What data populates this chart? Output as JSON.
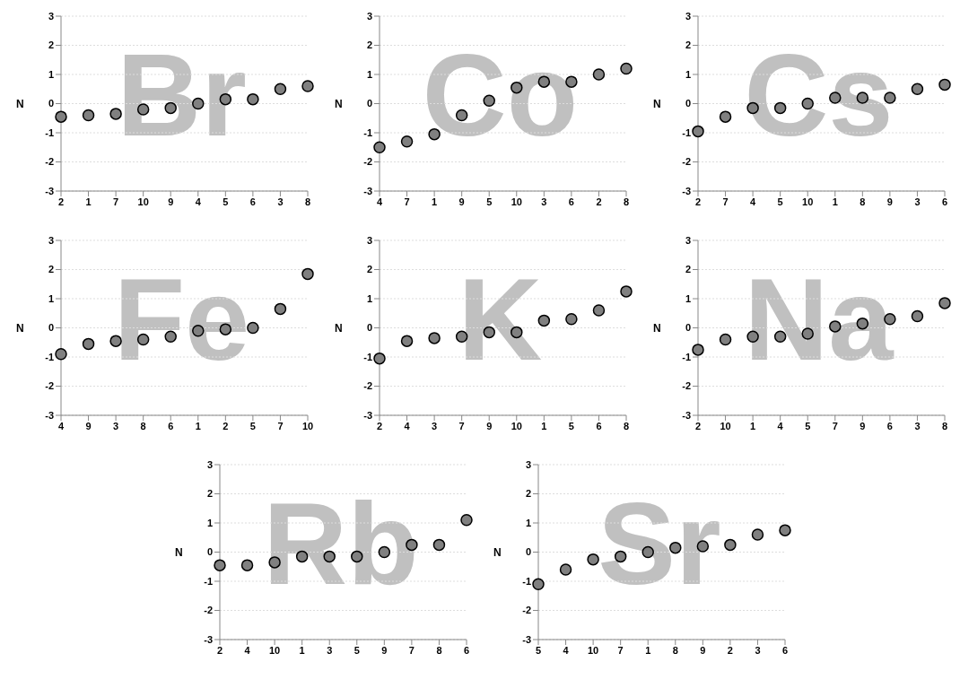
{
  "chart_data": [
    {
      "type": "scatter",
      "title": "Br",
      "ylabel": "N",
      "categories": [
        "2",
        "1",
        "7",
        "10",
        "9",
        "4",
        "5",
        "6",
        "3",
        "8"
      ],
      "values": [
        -0.45,
        -0.4,
        -0.35,
        -0.2,
        -0.15,
        0.0,
        0.15,
        0.15,
        0.5,
        0.6
      ],
      "color": "#808080",
      "ylim": [
        -3,
        3
      ],
      "yticks": [
        -3,
        -2,
        -1,
        0,
        1,
        2,
        3
      ],
      "grid": "y",
      "marker": "circle"
    },
    {
      "type": "scatter",
      "title": "Co",
      "ylabel": "N",
      "categories": [
        "4",
        "7",
        "1",
        "9",
        "5",
        "10",
        "3",
        "6",
        "2",
        "8"
      ],
      "values": [
        -1.5,
        -1.3,
        -1.05,
        -0.4,
        0.1,
        0.55,
        0.75,
        0.75,
        1.0,
        1.2
      ],
      "color": "#808080",
      "ylim": [
        -3,
        3
      ],
      "yticks": [
        -3,
        -2,
        -1,
        0,
        1,
        2,
        3
      ],
      "grid": "y",
      "marker": "circle"
    },
    {
      "type": "scatter",
      "title": "Cs",
      "ylabel": "N",
      "categories": [
        "2",
        "7",
        "4",
        "5",
        "10",
        "1",
        "8",
        "9",
        "3",
        "6"
      ],
      "values": [
        -0.95,
        -0.45,
        -0.15,
        -0.15,
        0.0,
        0.2,
        0.2,
        0.2,
        0.5,
        0.65
      ],
      "color": "#808080",
      "ylim": [
        -3,
        3
      ],
      "yticks": [
        -3,
        -2,
        -1,
        0,
        1,
        2,
        3
      ],
      "grid": "y",
      "marker": "circle"
    },
    {
      "type": "scatter",
      "title": "Fe",
      "ylabel": "N",
      "categories": [
        "4",
        "9",
        "3",
        "8",
        "6",
        "1",
        "2",
        "5",
        "7",
        "10"
      ],
      "values": [
        -0.9,
        -0.55,
        -0.45,
        -0.4,
        -0.3,
        -0.1,
        -0.05,
        0.0,
        0.65,
        1.85
      ],
      "color": "#808080",
      "ylim": [
        -3,
        3
      ],
      "yticks": [
        -3,
        -2,
        -1,
        0,
        1,
        2,
        3
      ],
      "grid": "y",
      "marker": "circle"
    },
    {
      "type": "scatter",
      "title": "K",
      "ylabel": "N",
      "categories": [
        "2",
        "4",
        "3",
        "7",
        "9",
        "10",
        "1",
        "5",
        "6",
        "8"
      ],
      "values": [
        -1.05,
        -0.45,
        -0.35,
        -0.3,
        -0.15,
        -0.15,
        0.25,
        0.3,
        0.6,
        1.25
      ],
      "color": "#808080",
      "ylim": [
        -3,
        3
      ],
      "yticks": [
        -3,
        -2,
        -1,
        0,
        1,
        2,
        3
      ],
      "grid": "y",
      "marker": "circle"
    },
    {
      "type": "scatter",
      "title": "Na",
      "ylabel": "N",
      "categories": [
        "2",
        "10",
        "1",
        "4",
        "5",
        "7",
        "9",
        "6",
        "3",
        "8"
      ],
      "values": [
        -0.75,
        -0.4,
        -0.3,
        -0.3,
        -0.2,
        0.05,
        0.15,
        0.3,
        0.4,
        0.85
      ],
      "color": "#808080",
      "ylim": [
        -3,
        3
      ],
      "yticks": [
        -3,
        -2,
        -1,
        0,
        1,
        2,
        3
      ],
      "grid": "y",
      "marker": "circle"
    },
    {
      "type": "scatter",
      "title": "Rb",
      "ylabel": "N",
      "categories": [
        "2",
        "4",
        "10",
        "1",
        "3",
        "5",
        "9",
        "7",
        "8",
        "6"
      ],
      "values": [
        -0.45,
        -0.45,
        -0.35,
        -0.15,
        -0.15,
        -0.15,
        0.0,
        0.25,
        0.25,
        1.1
      ],
      "color": "#808080",
      "ylim": [
        -3,
        3
      ],
      "yticks": [
        -3,
        -2,
        -1,
        0,
        1,
        2,
        3
      ],
      "grid": "y",
      "marker": "circle"
    },
    {
      "type": "scatter",
      "title": "Sr",
      "ylabel": "N",
      "categories": [
        "5",
        "4",
        "10",
        "7",
        "1",
        "8",
        "9",
        "2",
        "3",
        "6"
      ],
      "values": [
        -1.1,
        -0.6,
        -0.25,
        -0.15,
        0.0,
        0.15,
        0.2,
        0.25,
        0.6,
        0.75
      ],
      "color": "#808080",
      "ylim": [
        -3,
        3
      ],
      "yticks": [
        -3,
        -2,
        -1,
        0,
        1,
        2,
        3
      ],
      "grid": "y",
      "marker": "circle"
    }
  ]
}
